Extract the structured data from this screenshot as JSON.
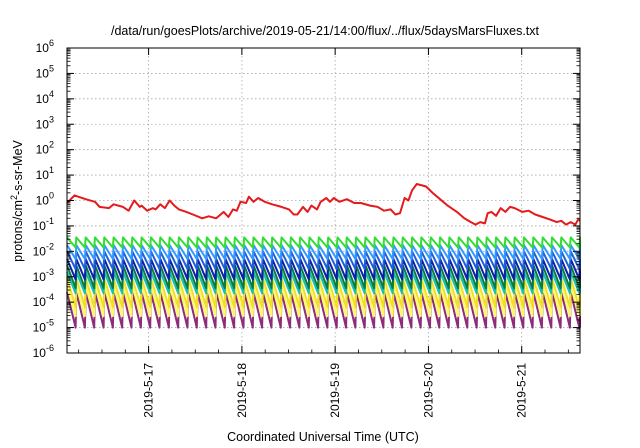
{
  "chart_data": {
    "type": "line",
    "title": "/data/run/goesPlots/archive/2019-05-21/14:00/flux/../flux/5daysMarsFluxes.txt",
    "xlabel": "Coordinated Universal Time (UTC)",
    "ylabel_parts": {
      "base": "protons/cm",
      "sup": "2",
      "rest": "-s-sr-MeV"
    },
    "yscale": "log",
    "ylim_exp": [
      -6,
      6
    ],
    "y_tick_labels": [
      {
        "base": "10",
        "exp": "-6"
      },
      {
        "base": "10",
        "exp": "-5"
      },
      {
        "base": "10",
        "exp": "-4"
      },
      {
        "base": "10",
        "exp": "-3"
      },
      {
        "base": "10",
        "exp": "-2"
      },
      {
        "base": "10",
        "exp": "-1"
      },
      {
        "base": "10",
        "exp": "0"
      },
      {
        "base": "10",
        "exp": "1"
      },
      {
        "base": "10",
        "exp": "2"
      },
      {
        "base": "10",
        "exp": "3"
      },
      {
        "base": "10",
        "exp": "4"
      },
      {
        "base": "10",
        "exp": "5"
      },
      {
        "base": "10",
        "exp": "6"
      }
    ],
    "x_range_days": [
      "2019-05-16 03:00",
      "2019-05-21 15:00"
    ],
    "x_tick_labels": [
      "2019-5-17",
      "2019-5-18",
      "2019-5-19",
      "2019-5-20",
      "2019-5-21"
    ],
    "grid": true,
    "series": [
      {
        "color": "#e41a1c",
        "points": [
          [
            0.0,
            -0.1
          ],
          [
            0.08,
            0.2
          ],
          [
            0.2,
            0.05
          ],
          [
            0.3,
            -0.05
          ],
          [
            0.35,
            -0.25
          ],
          [
            0.45,
            -0.3
          ],
          [
            0.5,
            -0.15
          ],
          [
            0.6,
            -0.25
          ],
          [
            0.66,
            -0.4
          ],
          [
            0.72,
            0.0
          ],
          [
            0.78,
            -0.25
          ],
          [
            0.8,
            -0.2
          ],
          [
            0.86,
            -0.4
          ],
          [
            0.92,
            -0.3
          ],
          [
            0.95,
            -0.35
          ],
          [
            1.0,
            -0.15
          ],
          [
            1.05,
            -0.3
          ],
          [
            1.1,
            0.0
          ],
          [
            1.15,
            -0.2
          ],
          [
            1.2,
            -0.35
          ],
          [
            1.28,
            -0.45
          ],
          [
            1.35,
            -0.55
          ],
          [
            1.45,
            -0.7
          ],
          [
            1.52,
            -0.62
          ],
          [
            1.6,
            -0.7
          ],
          [
            1.68,
            -0.45
          ],
          [
            1.73,
            -0.65
          ],
          [
            1.78,
            -0.35
          ],
          [
            1.82,
            -0.4
          ],
          [
            1.86,
            -0.05
          ],
          [
            1.92,
            -0.1
          ],
          [
            1.95,
            0.15
          ],
          [
            2.0,
            -0.05
          ],
          [
            2.05,
            0.1
          ],
          [
            2.12,
            -0.05
          ],
          [
            2.2,
            -0.15
          ],
          [
            2.3,
            -0.25
          ],
          [
            2.38,
            -0.35
          ],
          [
            2.43,
            -0.55
          ],
          [
            2.47,
            -0.55
          ],
          [
            2.53,
            -0.25
          ],
          [
            2.58,
            -0.45
          ],
          [
            2.62,
            -0.2
          ],
          [
            2.68,
            -0.35
          ],
          [
            2.72,
            -0.05
          ],
          [
            2.78,
            0.1
          ],
          [
            2.82,
            -0.05
          ],
          [
            2.86,
            0.1
          ],
          [
            2.92,
            -0.05
          ],
          [
            3.0,
            0.05
          ],
          [
            3.08,
            -0.1
          ],
          [
            3.15,
            -0.1
          ],
          [
            3.25,
            -0.2
          ],
          [
            3.33,
            -0.25
          ],
          [
            3.4,
            -0.4
          ],
          [
            3.47,
            -0.35
          ],
          [
            3.52,
            -0.55
          ],
          [
            3.57,
            -0.5
          ],
          [
            3.62,
            0.1
          ],
          [
            3.66,
            0.0
          ],
          [
            3.7,
            0.4
          ],
          [
            3.75,
            0.65
          ],
          [
            3.85,
            0.55
          ],
          [
            3.92,
            0.3
          ],
          [
            4.0,
            0.05
          ],
          [
            4.08,
            -0.2
          ],
          [
            4.18,
            -0.45
          ],
          [
            4.26,
            -0.7
          ],
          [
            4.33,
            -0.85
          ],
          [
            4.38,
            -0.95
          ],
          [
            4.43,
            -0.85
          ],
          [
            4.48,
            -0.9
          ],
          [
            4.51,
            -0.5
          ],
          [
            4.55,
            -0.45
          ],
          [
            4.6,
            -0.6
          ],
          [
            4.65,
            -0.3
          ],
          [
            4.7,
            -0.45
          ],
          [
            4.75,
            -0.25
          ],
          [
            4.8,
            -0.3
          ],
          [
            4.88,
            -0.45
          ],
          [
            4.95,
            -0.4
          ],
          [
            5.02,
            -0.55
          ],
          [
            5.1,
            -0.65
          ],
          [
            5.18,
            -0.75
          ],
          [
            5.25,
            -0.85
          ],
          [
            5.3,
            -0.8
          ],
          [
            5.35,
            -0.95
          ],
          [
            5.4,
            -0.85
          ],
          [
            5.45,
            -0.95
          ],
          [
            5.48,
            -0.75
          ],
          [
            5.5,
            -0.8
          ]
        ]
      },
      {
        "color": "#33dd33",
        "saw": {
          "high": -1.45,
          "low": -1.85
        }
      },
      {
        "color": "#3399ff",
        "saw": {
          "high": -1.75,
          "low": -2.3
        }
      },
      {
        "color": "#1f5fd8",
        "saw": {
          "high": -2.0,
          "low": -2.7
        }
      },
      {
        "color": "#0a22aa",
        "saw": {
          "high": -2.3,
          "low": -3.1
        }
      },
      {
        "color": "#0a7a40",
        "saw": {
          "high": -2.55,
          "low": -3.45
        }
      },
      {
        "color": "#16c0b0",
        "saw": {
          "high": -2.8,
          "low": -3.65
        }
      },
      {
        "color": "#f0e020",
        "saw": {
          "high": -3.05,
          "low": -4.2
        }
      },
      {
        "color": "#fff66a",
        "saw": {
          "high": -3.35,
          "low": -4.55
        }
      },
      {
        "color": "#8c2c7a",
        "saw": {
          "high": -3.6,
          "low": -5.0
        }
      }
    ],
    "saw_period_days": 0.1
  }
}
